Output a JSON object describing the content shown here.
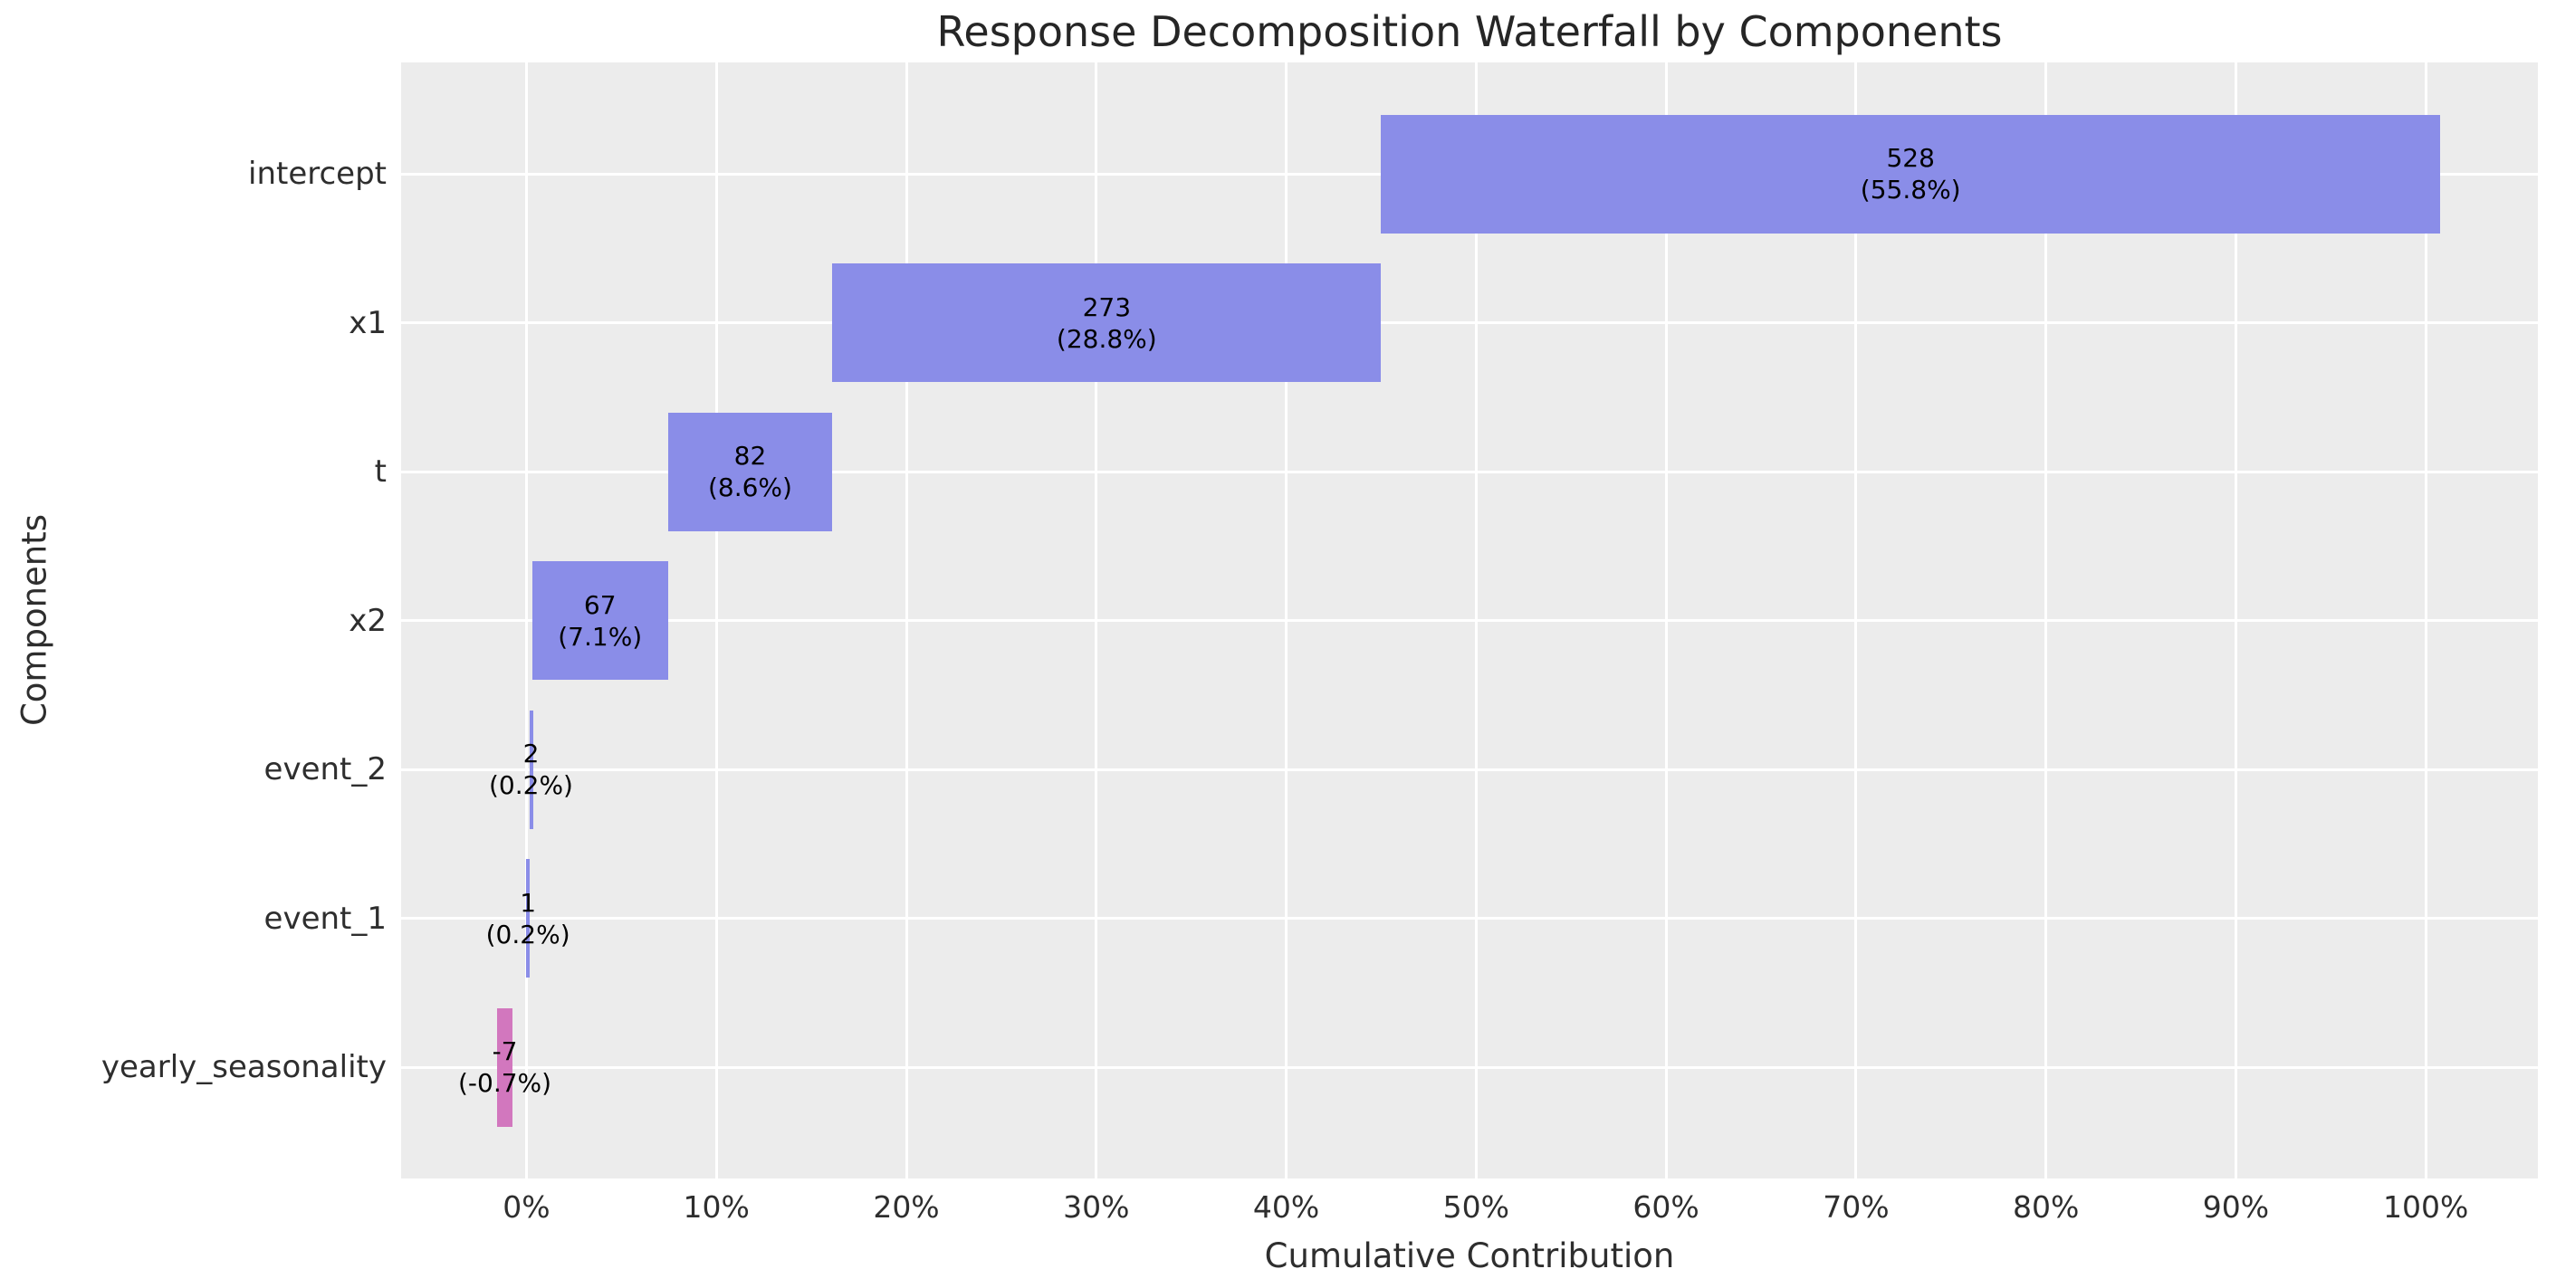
{
  "chart_data": {
    "type": "bar",
    "subtype": "horizontal-waterfall",
    "title": "Response Decomposition Waterfall by Components",
    "xlabel": "Cumulative Contribution",
    "ylabel": "Components",
    "categories": [
      "intercept",
      "x1",
      "t",
      "x2",
      "event_2",
      "event_1",
      "yearly_seasonality"
    ],
    "values": [
      528,
      273,
      82,
      67,
      2,
      1,
      -7
    ],
    "pct_of_total": [
      55.8,
      28.8,
      8.6,
      7.1,
      0.2,
      0.2,
      -0.7
    ],
    "bars": [
      {
        "category": "intercept",
        "value_label": "528",
        "pct_label": "(55.8%)",
        "start_pct": 45.0,
        "end_pct": 100.75,
        "sign": "positive"
      },
      {
        "category": "x1",
        "value_label": "273",
        "pct_label": "(28.8%)",
        "start_pct": 16.1,
        "end_pct": 45.0,
        "sign": "positive"
      },
      {
        "category": "t",
        "value_label": "82",
        "pct_label": "(8.6%)",
        "start_pct": 7.45,
        "end_pct": 16.1,
        "sign": "positive"
      },
      {
        "category": "x2",
        "value_label": "67",
        "pct_label": "(7.1%)",
        "start_pct": 0.3,
        "end_pct": 7.45,
        "sign": "positive"
      },
      {
        "category": "event_2",
        "value_label": "2",
        "pct_label": "(0.2%)",
        "start_pct": 0.15,
        "end_pct": 0.33,
        "sign": "positive"
      },
      {
        "category": "event_1",
        "value_label": "1",
        "pct_label": "(0.2%)",
        "start_pct": 0.0,
        "end_pct": 0.16,
        "sign": "positive"
      },
      {
        "category": "yearly_seasonality",
        "value_label": "-7",
        "pct_label": "(-0.7%)",
        "start_pct": -1.53,
        "end_pct": -0.75,
        "sign": "negative"
      }
    ],
    "x_ticks": [
      {
        "pct": 0,
        "label": "0%"
      },
      {
        "pct": 10,
        "label": "10%"
      },
      {
        "pct": 20,
        "label": "20%"
      },
      {
        "pct": 30,
        "label": "30%"
      },
      {
        "pct": 40,
        "label": "40%"
      },
      {
        "pct": 50,
        "label": "50%"
      },
      {
        "pct": 60,
        "label": "60%"
      },
      {
        "pct": 70,
        "label": "70%"
      },
      {
        "pct": 80,
        "label": "80%"
      },
      {
        "pct": 90,
        "label": "90%"
      },
      {
        "pct": 100,
        "label": "100%"
      }
    ],
    "xlim_pct": [
      -6.6,
      105.9
    ],
    "grid": true,
    "legend": "none",
    "colors": {
      "positive_bar": "#8A8DE8",
      "negative_bar": "#D277BE",
      "plot_background": "#ECECEC",
      "gridline": "#FFFFFF",
      "text": "#2E2E2E",
      "bar_label_text": "#000000"
    }
  }
}
